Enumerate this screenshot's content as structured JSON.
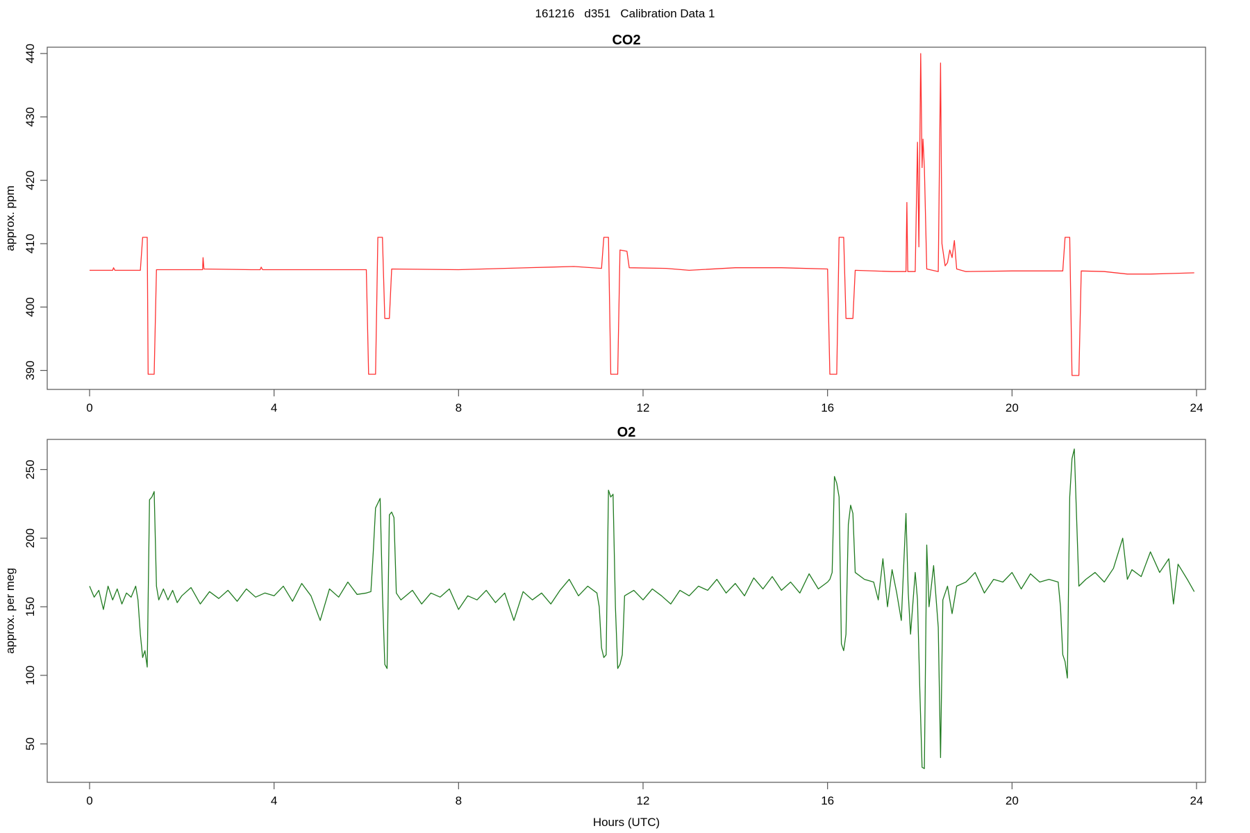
{
  "figure_title": "161216   d351   Calibration Data 1",
  "colors": {
    "co2": "#ff3030",
    "o2": "#1f7a1f",
    "axis": "#555555"
  },
  "chart_data": [
    {
      "type": "line",
      "title": "CO2",
      "xlabel": "",
      "ylabel": "approx. ppm",
      "xlim": [
        0,
        24
      ],
      "ylim": [
        387,
        441
      ],
      "xticks": [
        0,
        4,
        8,
        12,
        16,
        20,
        24
      ],
      "yticks": [
        390,
        400,
        410,
        420,
        430,
        440
      ],
      "grid": false,
      "series": [
        {
          "color": "#ff3030",
          "points": [
            [
              0.0,
              405.8
            ],
            [
              0.5,
              405.8
            ],
            [
              0.52,
              406.2
            ],
            [
              0.55,
              405.8
            ],
            [
              1.1,
              405.8
            ],
            [
              1.15,
              411.0
            ],
            [
              1.25,
              411.0
            ],
            [
              1.27,
              389.4
            ],
            [
              1.4,
              389.4
            ],
            [
              1.45,
              405.9
            ],
            [
              2.0,
              405.9
            ],
            [
              2.3,
              405.9
            ],
            [
              2.45,
              405.9
            ],
            [
              2.46,
              407.8
            ],
            [
              2.48,
              406.0
            ],
            [
              3.5,
              405.9
            ],
            [
              3.7,
              405.9
            ],
            [
              3.72,
              406.3
            ],
            [
              3.75,
              405.9
            ],
            [
              6.0,
              405.9
            ],
            [
              6.05,
              389.4
            ],
            [
              6.2,
              389.4
            ],
            [
              6.25,
              411.0
            ],
            [
              6.35,
              411.0
            ],
            [
              6.4,
              398.2
            ],
            [
              6.5,
              398.2
            ],
            [
              6.55,
              406.0
            ],
            [
              8.0,
              405.9
            ],
            [
              9.0,
              406.1
            ],
            [
              10.0,
              406.3
            ],
            [
              10.5,
              406.4
            ],
            [
              11.1,
              406.1
            ],
            [
              11.15,
              411.0
            ],
            [
              11.25,
              411.0
            ],
            [
              11.3,
              389.4
            ],
            [
              11.45,
              389.4
            ],
            [
              11.5,
              409.0
            ],
            [
              11.65,
              408.8
            ],
            [
              11.7,
              406.2
            ],
            [
              12.5,
              406.1
            ],
            [
              13.0,
              405.8
            ],
            [
              14.0,
              406.2
            ],
            [
              15.0,
              406.2
            ],
            [
              16.0,
              406.0
            ],
            [
              16.05,
              389.4
            ],
            [
              16.2,
              389.4
            ],
            [
              16.25,
              411.0
            ],
            [
              16.35,
              411.0
            ],
            [
              16.4,
              398.2
            ],
            [
              16.55,
              398.2
            ],
            [
              16.6,
              405.8
            ],
            [
              17.4,
              405.6
            ],
            [
              17.7,
              405.6
            ],
            [
              17.72,
              416.5
            ],
            [
              17.74,
              405.6
            ],
            [
              17.9,
              405.6
            ],
            [
              17.95,
              426.0
            ],
            [
              17.98,
              409.5
            ],
            [
              18.02,
              440.0
            ],
            [
              18.05,
              422.0
            ],
            [
              18.07,
              426.5
            ],
            [
              18.1,
              422.0
            ],
            [
              18.15,
              406.0
            ],
            [
              18.4,
              405.6
            ],
            [
              18.45,
              438.5
            ],
            [
              18.48,
              410.0
            ],
            [
              18.55,
              406.5
            ],
            [
              18.6,
              407.0
            ],
            [
              18.65,
              409.0
            ],
            [
              18.7,
              407.8
            ],
            [
              18.75,
              410.5
            ],
            [
              18.8,
              406.0
            ],
            [
              19.0,
              405.6
            ],
            [
              20.0,
              405.7
            ],
            [
              21.0,
              405.7
            ],
            [
              21.1,
              405.7
            ],
            [
              21.15,
              411.0
            ],
            [
              21.25,
              411.0
            ],
            [
              21.3,
              389.2
            ],
            [
              21.45,
              389.2
            ],
            [
              21.5,
              405.7
            ],
            [
              22.0,
              405.6
            ],
            [
              22.5,
              405.2
            ],
            [
              23.0,
              405.2
            ],
            [
              23.5,
              405.3
            ],
            [
              23.95,
              405.4
            ]
          ]
        }
      ]
    },
    {
      "type": "line",
      "title": "O2",
      "xlabel": "Hours (UTC)",
      "ylabel": "approx. per meg",
      "xlim": [
        0,
        24
      ],
      "ylim": [
        22,
        272
      ],
      "xticks": [
        0,
        4,
        8,
        12,
        16,
        20,
        24
      ],
      "yticks": [
        50,
        100,
        150,
        200,
        250
      ],
      "grid": false,
      "series": [
        {
          "color": "#1f7a1f",
          "points": [
            [
              0.0,
              165
            ],
            [
              0.1,
              157
            ],
            [
              0.2,
              162
            ],
            [
              0.3,
              148
            ],
            [
              0.4,
              165
            ],
            [
              0.5,
              155
            ],
            [
              0.6,
              163
            ],
            [
              0.7,
              152
            ],
            [
              0.8,
              160
            ],
            [
              0.9,
              157
            ],
            [
              1.0,
              165
            ],
            [
              1.05,
              155
            ],
            [
              1.1,
              130
            ],
            [
              1.15,
              113
            ],
            [
              1.2,
              118
            ],
            [
              1.25,
              106
            ],
            [
              1.3,
              228
            ],
            [
              1.35,
              230
            ],
            [
              1.4,
              234
            ],
            [
              1.45,
              165
            ],
            [
              1.5,
              155
            ],
            [
              1.6,
              163
            ],
            [
              1.7,
              155
            ],
            [
              1.8,
              162
            ],
            [
              1.9,
              153
            ],
            [
              2.0,
              158
            ],
            [
              2.2,
              164
            ],
            [
              2.4,
              152
            ],
            [
              2.6,
              161
            ],
            [
              2.8,
              156
            ],
            [
              3.0,
              162
            ],
            [
              3.2,
              154
            ],
            [
              3.4,
              163
            ],
            [
              3.6,
              157
            ],
            [
              3.8,
              160
            ],
            [
              4.0,
              158
            ],
            [
              4.2,
              165
            ],
            [
              4.4,
              154
            ],
            [
              4.6,
              167
            ],
            [
              4.8,
              158
            ],
            [
              5.0,
              140
            ],
            [
              5.2,
              163
            ],
            [
              5.4,
              157
            ],
            [
              5.6,
              168
            ],
            [
              5.8,
              159
            ],
            [
              6.0,
              160
            ],
            [
              6.1,
              161
            ],
            [
              6.15,
              190
            ],
            [
              6.2,
              222
            ],
            [
              6.3,
              229
            ],
            [
              6.35,
              160
            ],
            [
              6.4,
              108
            ],
            [
              6.45,
              105
            ],
            [
              6.5,
              217
            ],
            [
              6.55,
              219
            ],
            [
              6.6,
              215
            ],
            [
              6.65,
              160
            ],
            [
              6.75,
              155
            ],
            [
              7.0,
              162
            ],
            [
              7.2,
              152
            ],
            [
              7.4,
              160
            ],
            [
              7.6,
              157
            ],
            [
              7.8,
              163
            ],
            [
              8.0,
              148
            ],
            [
              8.2,
              158
            ],
            [
              8.4,
              155
            ],
            [
              8.6,
              162
            ],
            [
              8.8,
              153
            ],
            [
              9.0,
              160
            ],
            [
              9.2,
              140
            ],
            [
              9.4,
              161
            ],
            [
              9.6,
              155
            ],
            [
              9.8,
              160
            ],
            [
              10.0,
              152
            ],
            [
              10.2,
              162
            ],
            [
              10.4,
              170
            ],
            [
              10.6,
              158
            ],
            [
              10.8,
              165
            ],
            [
              11.0,
              160
            ],
            [
              11.05,
              150
            ],
            [
              11.1,
              120
            ],
            [
              11.15,
              113
            ],
            [
              11.2,
              115
            ],
            [
              11.25,
              235
            ],
            [
              11.3,
              230
            ],
            [
              11.35,
              232
            ],
            [
              11.4,
              150
            ],
            [
              11.45,
              105
            ],
            [
              11.5,
              108
            ],
            [
              11.55,
              115
            ],
            [
              11.6,
              158
            ],
            [
              11.8,
              162
            ],
            [
              12.0,
              155
            ],
            [
              12.2,
              163
            ],
            [
              12.4,
              158
            ],
            [
              12.6,
              152
            ],
            [
              12.8,
              162
            ],
            [
              13.0,
              158
            ],
            [
              13.2,
              165
            ],
            [
              13.4,
              162
            ],
            [
              13.6,
              170
            ],
            [
              13.8,
              160
            ],
            [
              14.0,
              167
            ],
            [
              14.2,
              158
            ],
            [
              14.4,
              171
            ],
            [
              14.6,
              163
            ],
            [
              14.8,
              172
            ],
            [
              15.0,
              162
            ],
            [
              15.2,
              168
            ],
            [
              15.4,
              160
            ],
            [
              15.6,
              174
            ],
            [
              15.8,
              163
            ],
            [
              16.0,
              168
            ],
            [
              16.05,
              170
            ],
            [
              16.1,
              175
            ],
            [
              16.15,
              245
            ],
            [
              16.2,
              240
            ],
            [
              16.25,
              230
            ],
            [
              16.3,
              123
            ],
            [
              16.35,
              118
            ],
            [
              16.4,
              130
            ],
            [
              16.45,
              210
            ],
            [
              16.5,
              224
            ],
            [
              16.55,
              218
            ],
            [
              16.6,
              175
            ],
            [
              16.8,
              170
            ],
            [
              17.0,
              168
            ],
            [
              17.1,
              155
            ],
            [
              17.2,
              185
            ],
            [
              17.3,
              150
            ],
            [
              17.4,
              177
            ],
            [
              17.5,
              160
            ],
            [
              17.6,
              140
            ],
            [
              17.7,
              218
            ],
            [
              17.75,
              160
            ],
            [
              17.8,
              130
            ],
            [
              17.9,
              175
            ],
            [
              17.95,
              155
            ],
            [
              18.0,
              90
            ],
            [
              18.05,
              33
            ],
            [
              18.1,
              32
            ],
            [
              18.15,
              195
            ],
            [
              18.2,
              150
            ],
            [
              18.3,
              180
            ],
            [
              18.4,
              135
            ],
            [
              18.45,
              40
            ],
            [
              18.5,
              155
            ],
            [
              18.6,
              165
            ],
            [
              18.7,
              145
            ],
            [
              18.8,
              165
            ],
            [
              19.0,
              168
            ],
            [
              19.2,
              175
            ],
            [
              19.4,
              160
            ],
            [
              19.6,
              170
            ],
            [
              19.8,
              168
            ],
            [
              20.0,
              175
            ],
            [
              20.2,
              163
            ],
            [
              20.4,
              174
            ],
            [
              20.6,
              168
            ],
            [
              20.8,
              170
            ],
            [
              21.0,
              168
            ],
            [
              21.05,
              150
            ],
            [
              21.1,
              115
            ],
            [
              21.15,
              110
            ],
            [
              21.2,
              98
            ],
            [
              21.25,
              230
            ],
            [
              21.3,
              258
            ],
            [
              21.35,
              265
            ],
            [
              21.4,
              215
            ],
            [
              21.45,
              165
            ],
            [
              21.6,
              170
            ],
            [
              21.8,
              175
            ],
            [
              22.0,
              168
            ],
            [
              22.2,
              178
            ],
            [
              22.4,
              200
            ],
            [
              22.5,
              170
            ],
            [
              22.6,
              177
            ],
            [
              22.8,
              172
            ],
            [
              23.0,
              190
            ],
            [
              23.2,
              175
            ],
            [
              23.4,
              185
            ],
            [
              23.5,
              152
            ],
            [
              23.6,
              181
            ],
            [
              23.8,
              170
            ],
            [
              23.95,
              161
            ]
          ]
        }
      ]
    }
  ]
}
